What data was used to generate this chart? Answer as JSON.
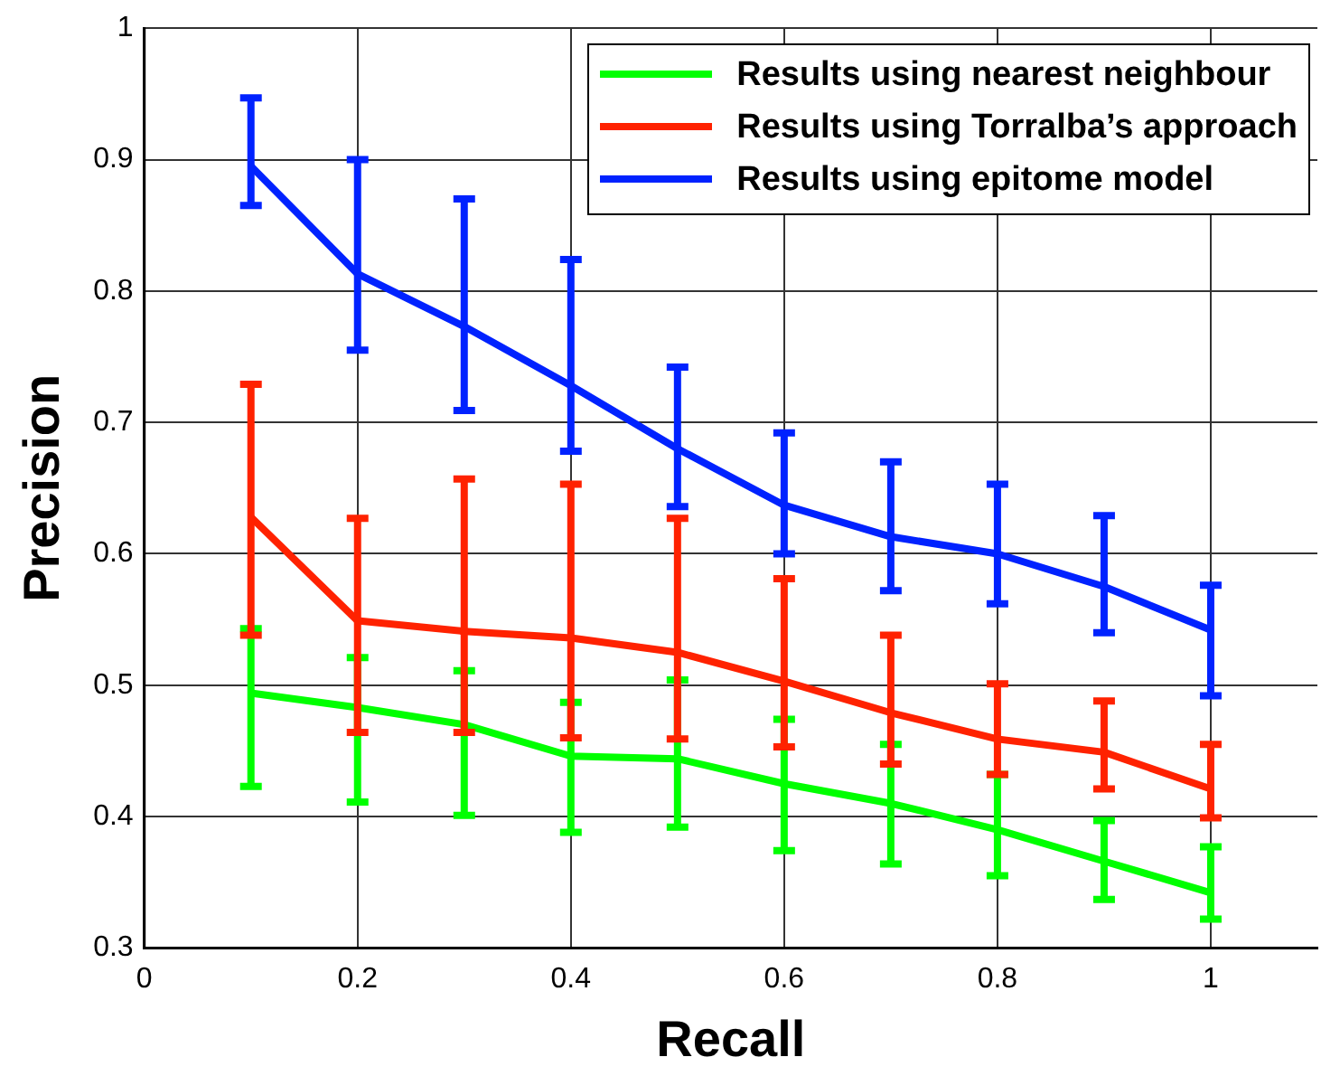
{
  "chart_data": {
    "type": "line",
    "xlabel": "Recall",
    "ylabel": "Precision",
    "x": [
      0.1,
      0.2,
      0.3,
      0.4,
      0.5,
      0.6,
      0.7,
      0.8,
      0.9,
      1
    ],
    "series": [
      {
        "name": "Results using nearest neighbour",
        "color": "#00ff00",
        "values": [
          0.494,
          0.483,
          0.47,
          0.446,
          0.444,
          0.425,
          0.41,
          0.39,
          0.366,
          0.342
        ],
        "errors": [
          [
            0.423,
            0.543
          ],
          [
            0.411,
            0.521
          ],
          [
            0.401,
            0.511
          ],
          [
            0.388,
            0.487
          ],
          [
            0.392,
            0.504
          ],
          [
            0.374,
            0.474
          ],
          [
            0.364,
            0.455
          ],
          [
            0.355,
            0.432
          ],
          [
            0.337,
            0.397
          ],
          [
            0.322,
            0.377
          ]
        ]
      },
      {
        "name": "Results using Torralba’s approach",
        "color": "#ff2200",
        "values": [
          0.628,
          0.549,
          0.541,
          0.536,
          0.525,
          0.503,
          0.479,
          0.459,
          0.449,
          0.421
        ],
        "errors": [
          [
            0.538,
            0.729
          ],
          [
            0.464,
            0.627
          ],
          [
            0.464,
            0.657
          ],
          [
            0.46,
            0.653
          ],
          [
            0.459,
            0.627
          ],
          [
            0.453,
            0.581
          ],
          [
            0.44,
            0.538
          ],
          [
            0.432,
            0.501
          ],
          [
            0.421,
            0.488
          ],
          [
            0.399,
            0.455
          ]
        ]
      },
      {
        "name": "Results using epitome model",
        "color": "#0022ff",
        "values": [
          0.895,
          0.813,
          0.773,
          0.728,
          0.68,
          0.637,
          0.613,
          0.6,
          0.575,
          0.542
        ],
        "errors": [
          [
            0.865,
            0.947
          ],
          [
            0.755,
            0.9
          ],
          [
            0.709,
            0.87
          ],
          [
            0.678,
            0.824
          ],
          [
            0.636,
            0.742
          ],
          [
            0.6,
            0.692
          ],
          [
            0.572,
            0.67
          ],
          [
            0.562,
            0.653
          ],
          [
            0.54,
            0.629
          ],
          [
            0.492,
            0.576
          ]
        ]
      }
    ],
    "xlim": [
      0,
      1.1
    ],
    "xticks": [
      0,
      0.2,
      0.4,
      0.6,
      0.8,
      1
    ],
    "ylim": [
      0.3,
      1
    ],
    "yticks": [
      0.3,
      0.4,
      0.5,
      0.6,
      0.7,
      0.8,
      0.9,
      1
    ],
    "grid": true,
    "legend": "top right",
    "marker": "none",
    "line_style": "solid"
  }
}
